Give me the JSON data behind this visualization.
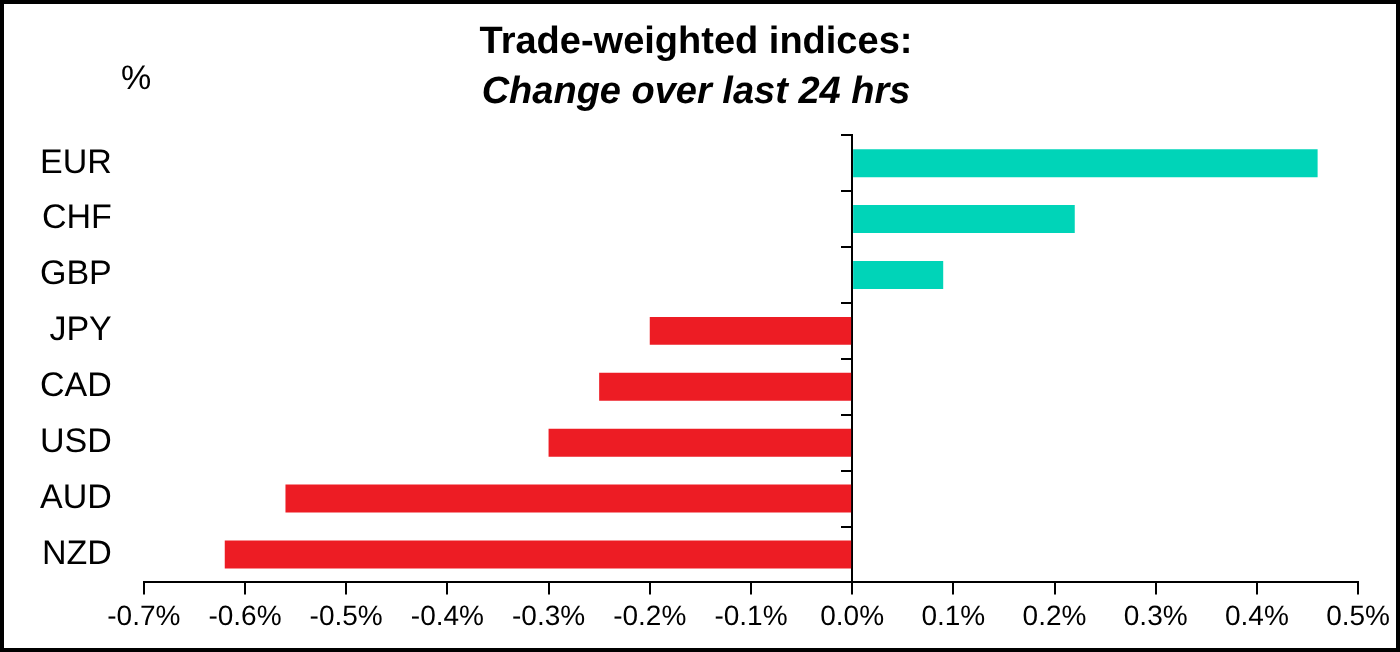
{
  "chart_data": {
    "type": "bar",
    "orientation": "horizontal",
    "title": "Trade-weighted indices:",
    "subtitle": "Change over last 24 hrs",
    "ylabel": "%",
    "categories": [
      "EUR",
      "CHF",
      "GBP",
      "JPY",
      "CAD",
      "USD",
      "AUD",
      "NZD"
    ],
    "values": [
      0.46,
      0.22,
      0.09,
      -0.2,
      -0.25,
      -0.3,
      -0.56,
      -0.62
    ],
    "colors": [
      "#00d4b8",
      "#00d4b8",
      "#00d4b8",
      "#ed1c24",
      "#ed1c24",
      "#ed1c24",
      "#ed1c24",
      "#ed1c24"
    ],
    "xlim": [
      -0.7,
      0.5
    ],
    "xticks": [
      {
        "value": -0.7,
        "label": "-0.7%"
      },
      {
        "value": -0.6,
        "label": "-0.6%"
      },
      {
        "value": -0.5,
        "label": "-0.5%"
      },
      {
        "value": -0.4,
        "label": "-0.4%"
      },
      {
        "value": -0.3,
        "label": "-0.3%"
      },
      {
        "value": -0.2,
        "label": "-0.2%"
      },
      {
        "value": -0.1,
        "label": "-0.1%"
      },
      {
        "value": 0,
        "label": "0.0%"
      },
      {
        "value": 0.1,
        "label": "0.1%"
      },
      {
        "value": 0.2,
        "label": "0.2%"
      },
      {
        "value": 0.3,
        "label": "0.3%"
      },
      {
        "value": 0.4,
        "label": "0.4%"
      },
      {
        "value": 0.5,
        "label": "0.5%"
      }
    ],
    "legend": false
  }
}
